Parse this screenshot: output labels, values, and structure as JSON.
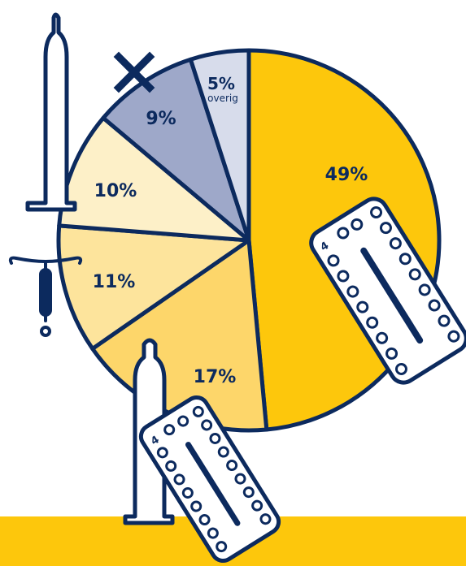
{
  "colors": {
    "outline": "#0c2a5e",
    "band": "#fdc70c",
    "background": "#ffffff"
  },
  "chart_data": {
    "type": "pie",
    "slices": [
      {
        "value": 49,
        "label": "49%",
        "color": "#fdc70c"
      },
      {
        "value": 17,
        "label": "17%",
        "color": "#fdd66a"
      },
      {
        "value": 11,
        "label": "11%",
        "color": "#fde49c"
      },
      {
        "value": 10,
        "label": "10%",
        "color": "#fdf0c8"
      },
      {
        "value": 9,
        "label": "9%",
        "color": "#9ea8c9"
      },
      {
        "value": 5,
        "label": "5%",
        "sublabel": "overig",
        "color": "#d7dceb"
      }
    ],
    "icons": [
      "pill-strip-icon",
      "condom-and-pill-icon",
      "iud-icon",
      "condom-icon",
      "cross-icon"
    ]
  }
}
